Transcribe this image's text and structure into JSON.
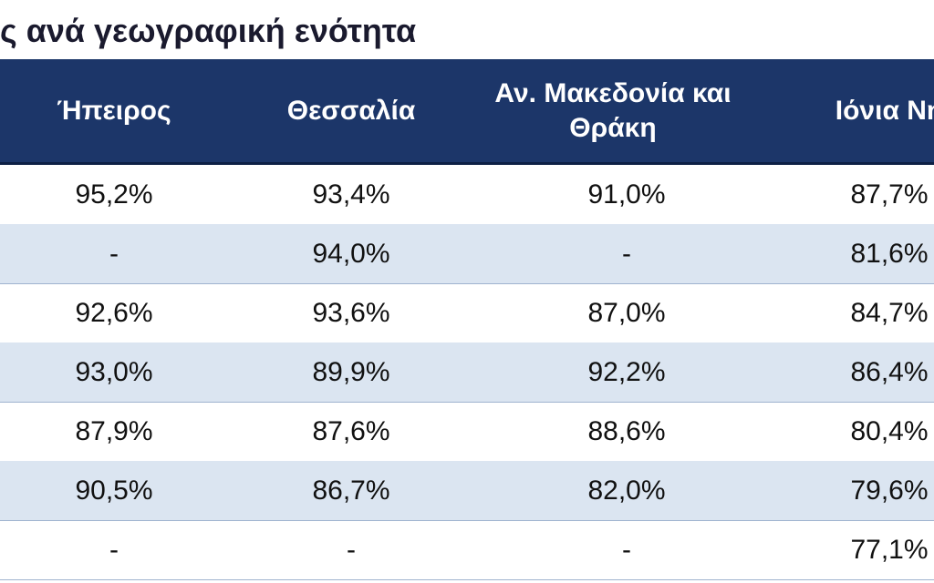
{
  "title": "ς ανά γεωγραφική ενότητα",
  "table": {
    "header": [
      "Ήπειρος",
      "Θεσσαλία",
      "Αν. Μακεδονία και Θράκη",
      "Ιόνια Νη"
    ],
    "rows": [
      [
        "95,2%",
        "93,4%",
        "91,0%",
        "87,7%"
      ],
      [
        "-",
        "94,0%",
        "-",
        "81,6%"
      ],
      [
        "92,6%",
        "93,6%",
        "87,0%",
        "84,7%"
      ],
      [
        "93,0%",
        "89,9%",
        "92,2%",
        "86,4%"
      ],
      [
        "87,9%",
        "87,6%",
        "88,6%",
        "80,4%"
      ],
      [
        "90,5%",
        "86,7%",
        "82,0%",
        "79,6%"
      ],
      [
        "-",
        "-",
        "-",
        "77,1%"
      ]
    ]
  }
}
